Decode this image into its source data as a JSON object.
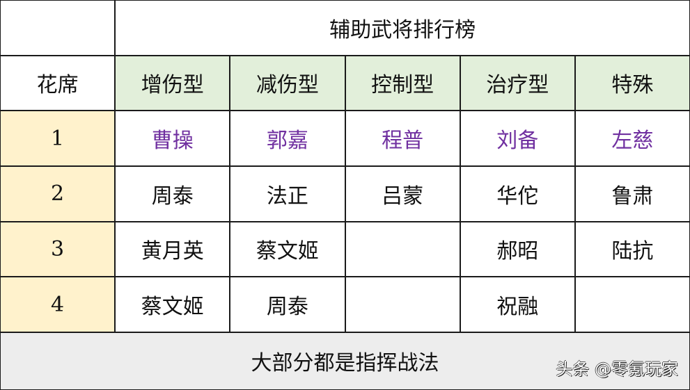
{
  "title": "辅助武将排行榜",
  "corner_label": "花席",
  "columns": [
    "增伤型",
    "减伤型",
    "控制型",
    "治疗型",
    "特殊"
  ],
  "rows": [
    {
      "rank": "1",
      "cells": [
        "曹操",
        "郭嘉",
        "程普",
        "刘备",
        "左慈"
      ]
    },
    {
      "rank": "2",
      "cells": [
        "周泰",
        "法正",
        "吕蒙",
        "华佗",
        "鲁肃"
      ]
    },
    {
      "rank": "3",
      "cells": [
        "黄月英",
        "蔡文姬",
        "",
        "郝昭",
        "陆抗"
      ]
    },
    {
      "rank": "4",
      "cells": [
        "蔡文姬",
        "周泰",
        "",
        "祝融",
        ""
      ]
    }
  ],
  "footer": "大部分都是指挥战法",
  "watermark": "头条 @零氪玩家",
  "colors": {
    "header_bg": "#e2efda",
    "rank_bg": "#fff2cc",
    "footer_bg": "#ededed",
    "top_rank_text": "#7030a0"
  }
}
